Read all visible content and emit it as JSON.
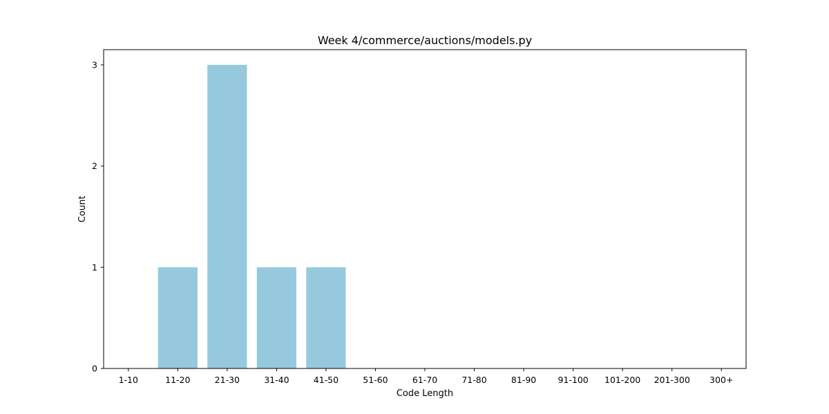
{
  "chart_data": {
    "type": "bar",
    "title": "Week 4/commerce/auctions/models.py",
    "xlabel": "Code Length",
    "ylabel": "Count",
    "categories": [
      "1-10",
      "11-20",
      "21-30",
      "31-40",
      "41-50",
      "51-60",
      "61-70",
      "71-80",
      "81-90",
      "91-100",
      "101-200",
      "201-300",
      "300+"
    ],
    "values": [
      0,
      1,
      3,
      1,
      1,
      0,
      0,
      0,
      0,
      0,
      0,
      0,
      0
    ],
    "yticks": [
      0,
      1,
      2,
      3
    ],
    "ylim": [
      0,
      3.15
    ],
    "bar_color": "#96c9de",
    "grid": false,
    "legend": "none"
  }
}
